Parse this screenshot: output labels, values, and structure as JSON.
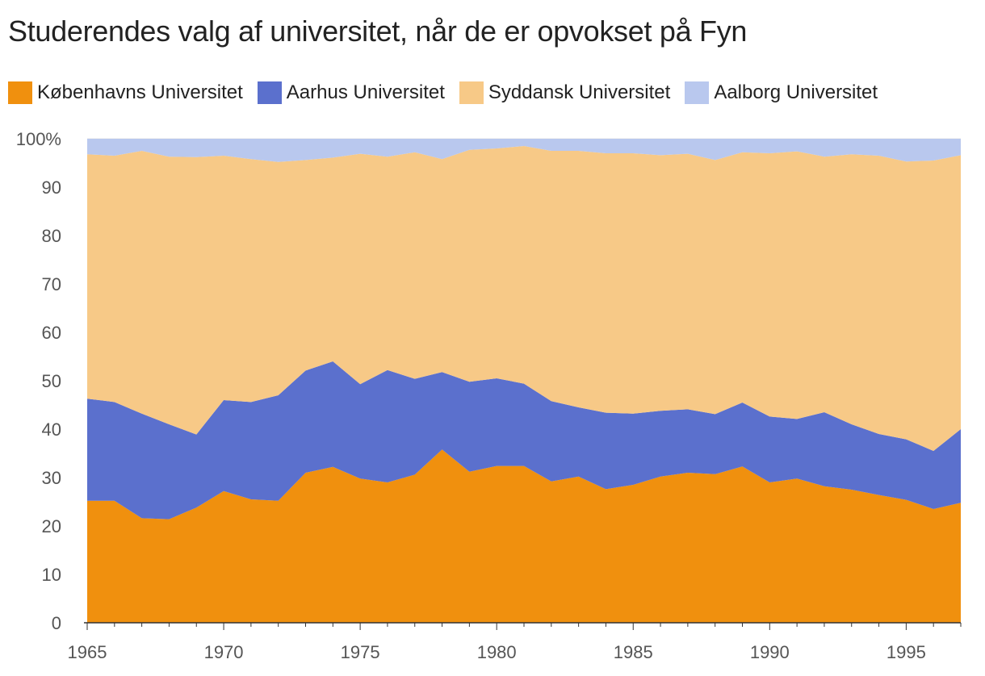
{
  "chart_data": {
    "type": "area",
    "stacked": true,
    "normalized": true,
    "title": "Studerendes valg af universitet, når de er opvokset på Fyn",
    "xlabel": "",
    "ylabel": "",
    "xlim": [
      1965,
      1997
    ],
    "ylim": [
      0,
      100
    ],
    "yticks": [
      0,
      10,
      20,
      30,
      40,
      50,
      60,
      70,
      80,
      90,
      100
    ],
    "ytick_labels": [
      "0",
      "10",
      "20",
      "30",
      "40",
      "50",
      "60",
      "70",
      "80",
      "90",
      "100%"
    ],
    "xticks": [
      1965,
      1970,
      1975,
      1980,
      1985,
      1990,
      1995
    ],
    "xtick_labels": [
      "1965",
      "1970",
      "1975",
      "1980",
      "1985",
      "1990",
      "1995"
    ],
    "grid": true,
    "legend_position": "top",
    "x": [
      1965,
      1966,
      1967,
      1968,
      1969,
      1970,
      1971,
      1972,
      1973,
      1974,
      1975,
      1976,
      1977,
      1978,
      1979,
      1980,
      1981,
      1982,
      1983,
      1984,
      1985,
      1986,
      1987,
      1988,
      1989,
      1990,
      1991,
      1992,
      1993,
      1994,
      1995,
      1996,
      1997
    ],
    "series": [
      {
        "name": "Københavns Universitet",
        "color": "#f0900e",
        "values": [
          25.2,
          25.2,
          21.6,
          21.4,
          23.8,
          27.2,
          25.5,
          25.2,
          31.0,
          32.2,
          29.8,
          29.0,
          30.6,
          35.8,
          31.2,
          32.4,
          32.4,
          29.2,
          30.2,
          27.6,
          28.5,
          30.2,
          31.0,
          30.7,
          32.3,
          29.0,
          29.8,
          28.2,
          27.5,
          26.4,
          25.4,
          23.5,
          24.8
        ]
      },
      {
        "name": "Aarhus Universitet",
        "color": "#5b70cd",
        "values": [
          21.1,
          20.4,
          21.6,
          19.6,
          15.1,
          18.8,
          20.1,
          21.8,
          21.1,
          21.8,
          19.5,
          23.2,
          19.8,
          16.0,
          18.6,
          18.1,
          17.0,
          16.6,
          14.3,
          15.8,
          14.7,
          13.6,
          13.1,
          12.4,
          13.2,
          13.6,
          12.3,
          15.3,
          13.5,
          12.6,
          12.5,
          12.0,
          15.2
        ]
      },
      {
        "name": "Syddansk Universitet",
        "color": "#f7c987",
        "values": [
          50.5,
          50.9,
          54.3,
          55.3,
          57.3,
          50.5,
          50.2,
          48.2,
          43.5,
          42.1,
          47.6,
          44.1,
          46.8,
          44.0,
          47.9,
          47.5,
          49.1,
          51.7,
          53.0,
          53.6,
          53.8,
          52.8,
          52.8,
          52.5,
          51.7,
          54.4,
          55.3,
          52.8,
          55.8,
          57.5,
          57.4,
          60.0,
          56.6
        ]
      },
      {
        "name": "Aalborg Universitet",
        "color": "#b9c8ee",
        "values": [
          3.2,
          3.5,
          2.5,
          3.7,
          3.8,
          3.5,
          4.2,
          4.8,
          4.4,
          3.9,
          3.1,
          3.7,
          2.8,
          4.2,
          2.3,
          2.0,
          1.5,
          2.5,
          2.5,
          3.0,
          3.0,
          3.4,
          3.1,
          4.4,
          2.8,
          3.0,
          2.6,
          3.7,
          3.2,
          3.5,
          4.7,
          4.5,
          3.4
        ]
      }
    ]
  }
}
